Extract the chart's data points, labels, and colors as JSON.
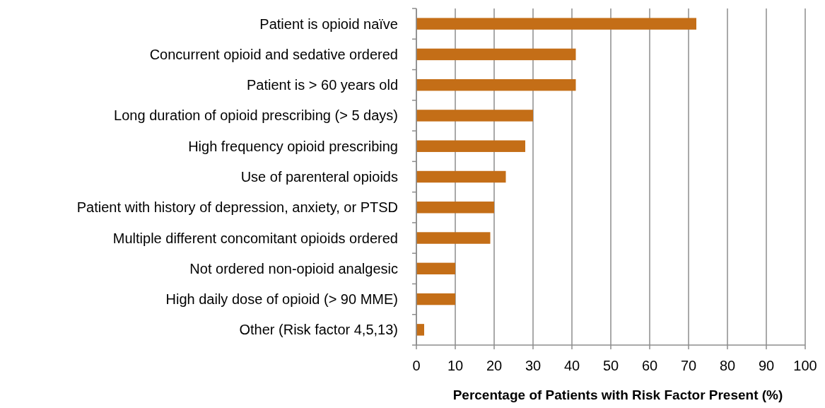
{
  "chart_data": {
    "type": "bar",
    "orientation": "horizontal",
    "xlabel": "Percentage of Patients with Risk Factor Present (%)",
    "categories": [
      "Patient is opioid naïve",
      "Concurrent opioid and sedative ordered",
      "Patient is > 60 years old",
      "Long duration of opioid prescribing (> 5 days)",
      "High frequency opioid prescribing ",
      "Use of parenteral opioids",
      "Patient with history of depression, anxiety, or PTSD",
      "Multiple different concomitant opioids ordered",
      "Not ordered non-opioid analgesic ",
      "High daily dose of opioid (> 90 MME)",
      "Other (Risk factor 4,5,13)"
    ],
    "values": [
      72,
      41,
      41,
      30,
      28,
      23,
      20,
      19,
      10,
      10,
      2
    ],
    "color": "#c46e17",
    "xlim": [
      0,
      100
    ],
    "xticks": [
      0,
      10,
      20,
      30,
      40,
      50,
      60,
      70,
      80,
      90,
      100
    ],
    "grid": "x"
  }
}
